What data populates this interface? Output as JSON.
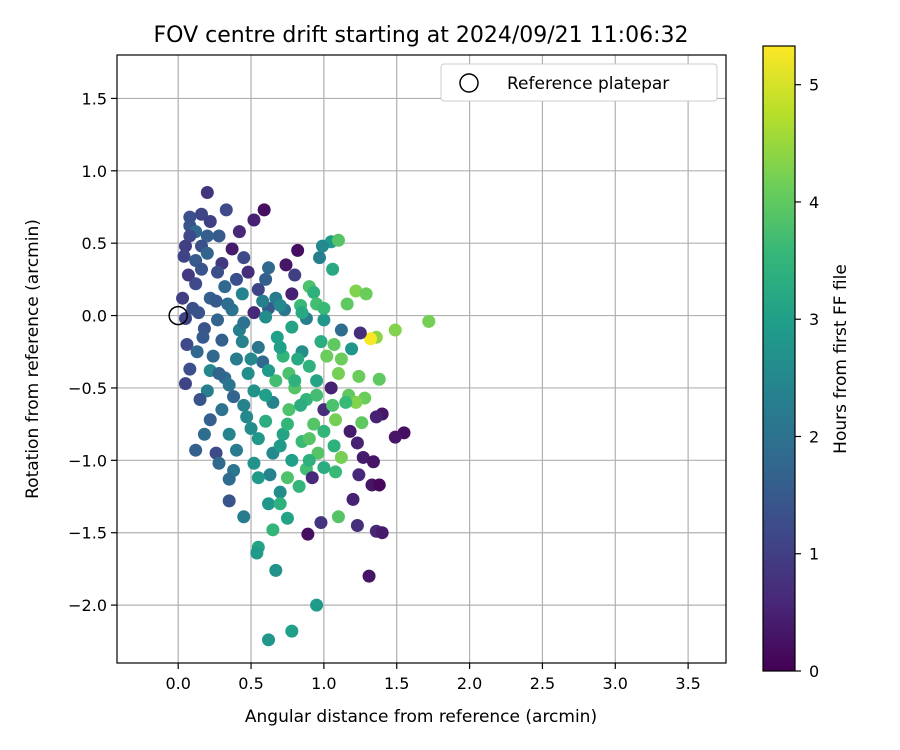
{
  "chart_data": {
    "type": "scatter",
    "title": "FOV centre drift starting at 2024/09/21 11:06:32",
    "xlabel": "Angular distance from reference (arcmin)",
    "ylabel": "Rotation from reference (arcmin)",
    "xlim": [
      -0.42,
      3.76
    ],
    "ylim": [
      -2.4,
      1.8
    ],
    "x_ticks": [
      0.0,
      0.5,
      1.0,
      1.5,
      2.0,
      2.5,
      3.0,
      3.5
    ],
    "x_tick_labels": [
      "0.0",
      "0.5",
      "1.0",
      "1.5",
      "2.0",
      "2.5",
      "3.0",
      "3.5"
    ],
    "y_ticks": [
      -2.0,
      -1.5,
      -1.0,
      -0.5,
      0.0,
      0.5,
      1.0,
      1.5
    ],
    "y_tick_labels": [
      "−2.0",
      "−1.5",
      "−1.0",
      "−0.5",
      "0.0",
      "0.5",
      "1.0",
      "1.5"
    ],
    "grid": true,
    "legend": {
      "position": "top-right",
      "entries": [
        "Reference platepar"
      ]
    },
    "reference_point": {
      "x": 0.0,
      "y": 0.0,
      "marker": "open-circle"
    },
    "colorbar": {
      "label": "Hours from first FF file",
      "range": [
        0,
        5.33
      ],
      "ticks": [
        0,
        1,
        2,
        3,
        4,
        5
      ],
      "tick_labels": [
        "0",
        "1",
        "2",
        "3",
        "4",
        "5"
      ],
      "colormap": "viridis",
      "color_stops": [
        "#440154",
        "#482878",
        "#3e4989",
        "#31688e",
        "#26828e",
        "#1f9e89",
        "#35b779",
        "#6ece58",
        "#b5de2b",
        "#fde725"
      ]
    },
    "points": [
      [
        0.2,
        0.85,
        0.8
      ],
      [
        0.59,
        0.73,
        0.2
      ],
      [
        0.33,
        0.73,
        1.2
      ],
      [
        0.52,
        0.66,
        0.5
      ],
      [
        0.08,
        0.68,
        1.3
      ],
      [
        0.16,
        0.7,
        1.1
      ],
      [
        0.08,
        0.62,
        1.4
      ],
      [
        0.22,
        0.65,
        1.0
      ],
      [
        0.12,
        0.58,
        1.8
      ],
      [
        0.28,
        0.55,
        1.5
      ],
      [
        0.42,
        0.58,
        0.6
      ],
      [
        0.08,
        0.55,
        1.2
      ],
      [
        0.2,
        0.55,
        1.6
      ],
      [
        0.37,
        0.46,
        0.4
      ],
      [
        0.05,
        0.48,
        1.0
      ],
      [
        0.16,
        0.48,
        1.3
      ],
      [
        1.05,
        0.51,
        2.9
      ],
      [
        0.99,
        0.48,
        2.5
      ],
      [
        1.1,
        0.52,
        3.9
      ],
      [
        0.82,
        0.45,
        0.2
      ],
      [
        0.97,
        0.4,
        2.3
      ],
      [
        0.2,
        0.43,
        1.7
      ],
      [
        0.45,
        0.4,
        1.2
      ],
      [
        0.04,
        0.41,
        1.1
      ],
      [
        0.12,
        0.38,
        1.5
      ],
      [
        0.3,
        0.36,
        0.9
      ],
      [
        0.62,
        0.33,
        1.8
      ],
      [
        0.74,
        0.35,
        0.3
      ],
      [
        1.06,
        0.32,
        3.2
      ],
      [
        0.27,
        0.3,
        1.3
      ],
      [
        0.48,
        0.3,
        0.7
      ],
      [
        0.07,
        0.28,
        0.9
      ],
      [
        0.16,
        0.32,
        1.4
      ],
      [
        0.8,
        0.28,
        1.0
      ],
      [
        1.22,
        0.17,
        4.3
      ],
      [
        1.29,
        0.15,
        4.1
      ],
      [
        0.9,
        0.2,
        3.8
      ],
      [
        0.78,
        0.15,
        0.5
      ],
      [
        0.93,
        0.16,
        3.4
      ],
      [
        0.55,
        0.18,
        1.1
      ],
      [
        0.32,
        0.2,
        1.8
      ],
      [
        0.12,
        0.22,
        1.2
      ],
      [
        0.44,
        0.15,
        2.4
      ],
      [
        0.03,
        0.12,
        1.0
      ],
      [
        0.22,
        0.12,
        1.6
      ],
      [
        0.67,
        0.12,
        2.2
      ],
      [
        1.16,
        0.08,
        4.0
      ],
      [
        0.84,
        0.07,
        3.6
      ],
      [
        0.95,
        0.08,
        3.7
      ],
      [
        0.62,
        0.05,
        1.5
      ],
      [
        0.37,
        0.04,
        2.0
      ],
      [
        0.1,
        0.05,
        1.3
      ],
      [
        0.52,
        0.02,
        0.6
      ],
      [
        0.73,
        0.04,
        2.1
      ],
      [
        0.05,
        -0.02,
        1.1
      ],
      [
        0.27,
        -0.03,
        1.7
      ],
      [
        0.6,
        -0.01,
        2.6
      ],
      [
        0.88,
        -0.02,
        2.3
      ],
      [
        1.0,
        -0.03,
        2.8
      ],
      [
        1.72,
        -0.04,
        4.2
      ],
      [
        1.49,
        -0.1,
        4.3
      ],
      [
        1.36,
        -0.15,
        4.4
      ],
      [
        1.32,
        -0.16,
        5.3
      ],
      [
        1.25,
        -0.12,
        0.7
      ],
      [
        1.12,
        -0.1,
        1.9
      ],
      [
        0.78,
        -0.08,
        3.1
      ],
      [
        0.42,
        -0.1,
        2.3
      ],
      [
        0.18,
        -0.09,
        1.4
      ],
      [
        0.06,
        -0.2,
        1.2
      ],
      [
        0.68,
        -0.15,
        3.0
      ],
      [
        0.98,
        -0.18,
        3.3
      ],
      [
        1.19,
        -0.23,
        2.8
      ],
      [
        1.07,
        -0.2,
        4.0
      ],
      [
        0.3,
        -0.17,
        1.6
      ],
      [
        0.55,
        -0.22,
        2.1
      ],
      [
        0.85,
        -0.25,
        2.6
      ],
      [
        0.13,
        -0.25,
        1.8
      ],
      [
        0.72,
        -0.28,
        3.5
      ],
      [
        1.02,
        -0.28,
        4.1
      ],
      [
        0.4,
        -0.3,
        2.2
      ],
      [
        0.58,
        -0.32,
        1.8
      ],
      [
        0.9,
        -0.35,
        3.4
      ],
      [
        0.22,
        -0.38,
        2.5
      ],
      [
        0.08,
        -0.37,
        1.3
      ],
      [
        0.76,
        -0.4,
        3.8
      ],
      [
        1.1,
        -0.4,
        4.2
      ],
      [
        1.24,
        -0.42,
        4.1
      ],
      [
        1.38,
        -0.44,
        4.0
      ],
      [
        0.48,
        -0.4,
        2.6
      ],
      [
        0.32,
        -0.43,
        1.9
      ],
      [
        0.67,
        -0.45,
        3.7
      ],
      [
        0.05,
        -0.47,
        1.1
      ],
      [
        0.95,
        -0.45,
        3.1
      ],
      [
        0.8,
        -0.5,
        3.9
      ],
      [
        1.05,
        -0.5,
        0.5
      ],
      [
        0.52,
        -0.52,
        2.7
      ],
      [
        0.2,
        -0.52,
        2.3
      ],
      [
        1.17,
        -0.55,
        4.0
      ],
      [
        0.38,
        -0.56,
        1.7
      ],
      [
        0.88,
        -0.58,
        3.5
      ],
      [
        1.28,
        -0.57,
        4.1
      ],
      [
        1.22,
        -0.6,
        4.3
      ],
      [
        1.15,
        -0.6,
        3.6
      ],
      [
        0.65,
        -0.6,
        2.4
      ],
      [
        0.15,
        -0.58,
        1.4
      ],
      [
        1.0,
        -0.65,
        0.7
      ],
      [
        0.3,
        -0.65,
        2.0
      ],
      [
        0.76,
        -0.65,
        3.8
      ],
      [
        1.4,
        -0.68,
        0.3
      ],
      [
        1.36,
        -0.7,
        0.5
      ],
      [
        0.47,
        -0.7,
        2.5
      ],
      [
        1.08,
        -0.72,
        4.2
      ],
      [
        0.6,
        -0.73,
        3.3
      ],
      [
        0.22,
        -0.72,
        1.6
      ],
      [
        0.93,
        -0.75,
        3.9
      ],
      [
        1.26,
        -0.74,
        4.0
      ],
      [
        1.18,
        -0.8,
        0.4
      ],
      [
        0.35,
        -0.82,
        2.4
      ],
      [
        0.72,
        -0.82,
        3.1
      ],
      [
        0.18,
        -0.82,
        1.9
      ],
      [
        1.55,
        -0.81,
        0.2
      ],
      [
        1.49,
        -0.84,
        0.3
      ],
      [
        0.55,
        -0.85,
        2.8
      ],
      [
        0.85,
        -0.87,
        3.6
      ],
      [
        1.07,
        -0.9,
        3.4
      ],
      [
        1.23,
        -0.88,
        0.5
      ],
      [
        0.4,
        -0.93,
        2.2
      ],
      [
        0.65,
        -0.95,
        2.5
      ],
      [
        0.96,
        -0.95,
        3.9
      ],
      [
        0.12,
        -0.93,
        1.6
      ],
      [
        0.26,
        -0.95,
        1.2
      ],
      [
        1.27,
        -0.98,
        0.4
      ],
      [
        1.12,
        -0.98,
        4.2
      ],
      [
        0.78,
        -1.0,
        3.0
      ],
      [
        0.52,
        -1.02,
        2.7
      ],
      [
        0.28,
        -1.02,
        1.8
      ],
      [
        1.34,
        -1.01,
        0.3
      ],
      [
        1.0,
        -1.05,
        3.3
      ],
      [
        0.88,
        -1.06,
        3.7
      ],
      [
        0.63,
        -1.1,
        2.4
      ],
      [
        0.38,
        -1.07,
        2.1
      ],
      [
        0.75,
        -1.12,
        3.8
      ],
      [
        0.92,
        -1.12,
        0.6
      ],
      [
        0.55,
        -1.12,
        2.9
      ],
      [
        0.35,
        -1.13,
        1.9
      ],
      [
        1.08,
        -1.08,
        3.6
      ],
      [
        1.24,
        -1.1,
        0.6
      ],
      [
        1.33,
        -1.17,
        0.3
      ],
      [
        1.38,
        -1.17,
        0.1
      ],
      [
        0.83,
        -1.18,
        3.5
      ],
      [
        0.7,
        -1.22,
        2.6
      ],
      [
        1.2,
        -1.27,
        0.5
      ],
      [
        0.62,
        -1.3,
        2.8
      ],
      [
        0.35,
        -1.28,
        1.4
      ],
      [
        0.45,
        -1.39,
        2.2
      ],
      [
        0.7,
        -1.3,
        3.4
      ],
      [
        0.75,
        -1.4,
        3.1
      ],
      [
        1.1,
        -1.39,
        3.9
      ],
      [
        0.98,
        -1.43,
        0.8
      ],
      [
        1.23,
        -1.45,
        0.7
      ],
      [
        0.89,
        -1.51,
        0.2
      ],
      [
        1.36,
        -1.49,
        0.6
      ],
      [
        1.4,
        -1.5,
        0.4
      ],
      [
        0.65,
        -1.48,
        3.5
      ],
      [
        0.55,
        -1.6,
        3.1
      ],
      [
        0.54,
        -1.64,
        2.9
      ],
      [
        0.67,
        -1.76,
        2.7
      ],
      [
        1.31,
        -1.8,
        0.3
      ],
      [
        0.95,
        -2.0,
        2.9
      ],
      [
        0.78,
        -2.18,
        3.0
      ],
      [
        0.62,
        -2.24,
        2.8
      ],
      [
        0.26,
        0.1,
        1.5
      ],
      [
        0.34,
        0.08,
        1.9
      ],
      [
        0.14,
        0.02,
        1.4
      ],
      [
        0.45,
        -0.05,
        2.0
      ],
      [
        0.58,
        0.1,
        2.3
      ],
      [
        0.7,
        0.07,
        2.5
      ],
      [
        0.85,
        0.02,
        3.2
      ],
      [
        1.0,
        0.05,
        3.6
      ],
      [
        0.24,
        -0.28,
        1.8
      ],
      [
        0.44,
        -0.18,
        2.4
      ],
      [
        0.62,
        -0.38,
        2.9
      ],
      [
        0.82,
        -0.3,
        3.2
      ],
      [
        1.12,
        -0.3,
        4.1
      ],
      [
        0.35,
        -0.48,
        2.1
      ],
      [
        0.6,
        -0.55,
        3.0
      ],
      [
        0.84,
        -0.62,
        3.3
      ],
      [
        1.0,
        -0.8,
        3.5
      ],
      [
        0.5,
        -0.78,
        2.6
      ],
      [
        0.7,
        -0.9,
        2.9
      ],
      [
        0.9,
        -1.0,
        3.4
      ],
      [
        0.45,
        -0.62,
        2.4
      ],
      [
        0.28,
        -0.4,
        1.7
      ],
      [
        0.17,
        -0.15,
        1.5
      ],
      [
        0.4,
        0.25,
        1.3
      ],
      [
        0.6,
        0.25,
        1.6
      ],
      [
        0.7,
        -0.22,
        3.0
      ],
      [
        0.8,
        -0.45,
        3.4
      ],
      [
        0.95,
        -0.55,
        3.7
      ],
      [
        0.5,
        -0.3,
        2.5
      ],
      [
        1.06,
        -0.62,
        3.8
      ],
      [
        0.75,
        -0.75,
        3.5
      ],
      [
        0.9,
        -0.85,
        3.9
      ]
    ]
  }
}
